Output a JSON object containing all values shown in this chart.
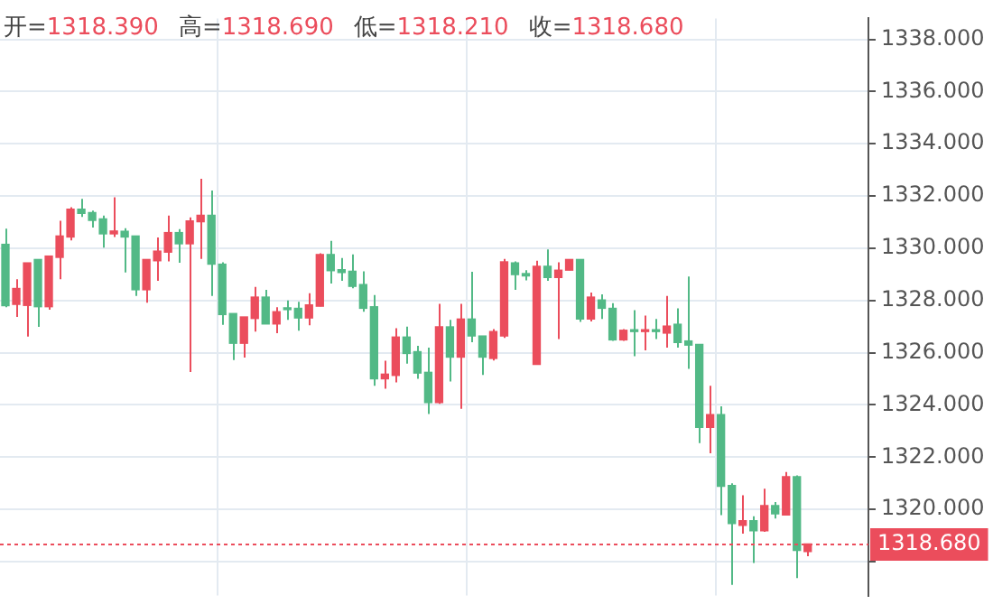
{
  "chart_data": {
    "type": "candlestick",
    "annotations": [
      "开=1318.390",
      "高=1318.690",
      "低=1318.210",
      "收=1318.680"
    ],
    "categories": [
      null,
      null,
      null,
      null,
      null,
      null,
      null,
      null,
      null,
      null,
      null,
      null,
      null,
      null,
      null,
      null,
      null,
      null,
      null,
      null,
      null,
      null,
      null,
      null,
      null,
      null,
      null,
      null,
      null,
      null,
      null,
      null,
      null,
      null,
      null,
      null,
      null,
      null,
      null,
      null,
      null,
      null,
      null,
      null,
      null,
      null,
      null,
      null,
      null,
      null,
      null,
      null,
      null,
      null,
      null,
      null,
      null,
      null,
      null,
      null,
      null,
      null,
      null,
      null,
      null,
      null,
      null,
      null,
      null,
      null,
      null,
      null,
      null,
      null,
      null
    ],
    "ohlc": [
      [
        1330.15,
        1330.75,
        1327.74,
        1327.8
      ],
      [
        1327.85,
        1328.81,
        1327.37,
        1328.46
      ],
      [
        1327.81,
        1329.44,
        1326.62,
        1329.44
      ],
      [
        1329.57,
        1329.57,
        1326.99,
        1327.76
      ],
      [
        1327.76,
        1329.7,
        1327.65,
        1329.7
      ],
      [
        1329.65,
        1331.05,
        1328.81,
        1330.47
      ],
      [
        1330.43,
        1331.57,
        1330.3,
        1331.5
      ],
      [
        1331.5,
        1331.89,
        1331.2,
        1331.33
      ],
      [
        1331.37,
        1331.44,
        1330.79,
        1331.07
      ],
      [
        1331.12,
        1331.25,
        1330.02,
        1330.55
      ],
      [
        1330.55,
        1331.95,
        1330.43,
        1330.66
      ],
      [
        1330.65,
        1330.77,
        1329.07,
        1330.43
      ],
      [
        1330.47,
        1330.47,
        1328.17,
        1328.41
      ],
      [
        1328.41,
        1329.57,
        1327.91,
        1329.57
      ],
      [
        1329.52,
        1330.41,
        1328.75,
        1329.89
      ],
      [
        1329.85,
        1331.25,
        1329.5,
        1330.6
      ],
      [
        1330.6,
        1330.73,
        1329.44,
        1330.17
      ],
      [
        1330.17,
        1331.18,
        1325.26,
        1331.05
      ],
      [
        1331.01,
        1332.66,
        1329.59,
        1331.26
      ],
      [
        1331.26,
        1332.21,
        1328.17,
        1329.39
      ],
      [
        1329.39,
        1329.46,
        1327.07,
        1327.46
      ],
      [
        1327.5,
        1327.5,
        1325.72,
        1326.36
      ],
      [
        1326.36,
        1327.37,
        1325.81,
        1327.37
      ],
      [
        1327.31,
        1328.52,
        1326.81,
        1328.13
      ],
      [
        1328.13,
        1328.41,
        1327.1,
        1327.1
      ],
      [
        1327.1,
        1327.74,
        1326.75,
        1327.57
      ],
      [
        1327.7,
        1328,
        1327.26,
        1327.65
      ],
      [
        1327.7,
        1327.95,
        1326.84,
        1327.33
      ],
      [
        1327.33,
        1328.28,
        1327.05,
        1327.83
      ],
      [
        1327.78,
        1329.81,
        1327.78,
        1329.76
      ],
      [
        1329.76,
        1330.28,
        1328.65,
        1329.14
      ],
      [
        1329.18,
        1329.63,
        1328.75,
        1329.07
      ],
      [
        1329.12,
        1329.76,
        1328.47,
        1328.54
      ],
      [
        1328.61,
        1329.12,
        1327.57,
        1327.7
      ],
      [
        1327.76,
        1328.21,
        1324.73,
        1325
      ],
      [
        1325,
        1325.69,
        1324.62,
        1325.18
      ],
      [
        1325.13,
        1326.94,
        1324.86,
        1326.6
      ],
      [
        1326.6,
        1327,
        1325.58,
        1325.97
      ],
      [
        1326.04,
        1326.26,
        1325,
        1325.22
      ],
      [
        1325.25,
        1326.19,
        1323.65,
        1324.09
      ],
      [
        1324.09,
        1327.87,
        1324.04,
        1326.99
      ],
      [
        1326.99,
        1327.26,
        1324.9,
        1325.83
      ],
      [
        1325.83,
        1327.87,
        1323.85,
        1327.29
      ],
      [
        1327.29,
        1329.1,
        1326.4,
        1326.64
      ],
      [
        1326.64,
        1326.64,
        1325.15,
        1325.83
      ],
      [
        1325.78,
        1326.9,
        1325.7,
        1326.81
      ],
      [
        1326.64,
        1329.59,
        1326.57,
        1329.48
      ],
      [
        1329.44,
        1329.5,
        1328.41,
        1328.99
      ],
      [
        1329.03,
        1329.16,
        1328.77,
        1328.94
      ],
      [
        1325.55,
        1329.52,
        1325.55,
        1329.31
      ],
      [
        1329.31,
        1329.95,
        1328.75,
        1328.88
      ],
      [
        1328.88,
        1329.46,
        1326.52,
        1329.16
      ],
      [
        1329.16,
        1329.57,
        1329.16,
        1329.57
      ],
      [
        1329.57,
        1329.57,
        1327.18,
        1327.29
      ],
      [
        1327.29,
        1328.3,
        1327.2,
        1328.13
      ],
      [
        1328.02,
        1328.23,
        1327.29,
        1327.7
      ],
      [
        1327.7,
        1327.9,
        1326.45,
        1326.49
      ],
      [
        1326.49,
        1326.9,
        1326.45,
        1326.86
      ],
      [
        1326.88,
        1327.63,
        1325.87,
        1326.81
      ],
      [
        1326.81,
        1327.42,
        1326.09,
        1326.88
      ],
      [
        1326.88,
        1327.29,
        1326.52,
        1326.81
      ],
      [
        1326.75,
        1328.17,
        1326.19,
        1327.02
      ],
      [
        1327.09,
        1327.7,
        1326.19,
        1326.39
      ],
      [
        1326.45,
        1328.92,
        1325.38,
        1326.29
      ],
      [
        1326.32,
        1326.32,
        1322.54,
        1323.14
      ],
      [
        1323.14,
        1324.73,
        1322.15,
        1323.63
      ],
      [
        1323.63,
        1323.95,
        1319.78,
        1320.88
      ],
      [
        1320.92,
        1321,
        1317.11,
        1319.46
      ],
      [
        1319.39,
        1320.54,
        1319.07,
        1319.57
      ],
      [
        1319.57,
        1319.74,
        1317.95,
        1319.18
      ],
      [
        1319.18,
        1320.79,
        1319.14,
        1320.15
      ],
      [
        1320.15,
        1320.28,
        1319.65,
        1319.83
      ],
      [
        1319.79,
        1321.43,
        1319.79,
        1321.25
      ],
      [
        1321.25,
        1321.3,
        1317.37,
        1318.43
      ],
      [
        1318.39,
        1318.69,
        1318.21,
        1318.68
      ]
    ],
    "colors": [
      "#52b986",
      "#eb4d5c",
      "#eb4d5c",
      "#52b986",
      "#eb4d5c",
      "#eb4d5c",
      "#eb4d5c",
      "#52b986",
      "#52b986",
      "#52b986",
      "#eb4d5c",
      "#52b986",
      "#52b986",
      "#eb4d5c",
      "#eb4d5c",
      "#eb4d5c",
      "#52b986",
      "#eb4d5c",
      "#eb4d5c",
      "#52b986",
      "#52b986",
      "#52b986",
      "#eb4d5c",
      "#eb4d5c",
      "#52b986",
      "#eb4d5c",
      "#52b986",
      "#52b986",
      "#eb4d5c",
      "#eb4d5c",
      "#52b986",
      "#52b986",
      "#52b986",
      "#52b986",
      "#52b986",
      "#eb4d5c",
      "#eb4d5c",
      "#52b986",
      "#52b986",
      "#52b986",
      "#eb4d5c",
      "#52b986",
      "#eb4d5c",
      "#52b986",
      "#52b986",
      "#eb4d5c",
      "#eb4d5c",
      "#52b986",
      "#52b986",
      "#eb4d5c",
      "#52b986",
      "#eb4d5c",
      "#eb4d5c",
      "#52b986",
      "#eb4d5c",
      "#52b986",
      "#52b986",
      "#eb4d5c",
      "#52b986",
      "#eb4d5c",
      "#52b986",
      "#eb4d5c",
      "#52b986",
      "#52b986",
      "#52b986",
      "#eb4d5c",
      "#52b986",
      "#52b986",
      "#eb4d5c",
      "#52b986",
      "#eb4d5c",
      "#52b986",
      "#eb4d5c",
      "#52b986",
      "#eb4d5c"
    ],
    "ylim": [
      1316.7,
      1338.8
    ],
    "yticks": [
      {
        "value": 1318,
        "label": null
      },
      {
        "value": 1320,
        "label": "1320.000"
      },
      {
        "value": 1322,
        "label": "1322.000"
      },
      {
        "value": 1324,
        "label": "1324.000"
      },
      {
        "value": 1326,
        "label": "1326.000"
      },
      {
        "value": 1328,
        "label": "1328.000"
      },
      {
        "value": 1330,
        "label": "1330.000"
      },
      {
        "value": 1332,
        "label": "1332.000"
      },
      {
        "value": 1334,
        "label": "1334.000"
      },
      {
        "value": 1336,
        "label": "1336.000"
      },
      {
        "value": 1338,
        "label": "1338.000"
      }
    ],
    "ref_lines": [
      {
        "axis": "y",
        "value": 1318.68,
        "label": "1318.680",
        "color": "#eb4d5c",
        "line_style": "dotted"
      }
    ],
    "grid": true,
    "tick_labels": "y"
  }
}
